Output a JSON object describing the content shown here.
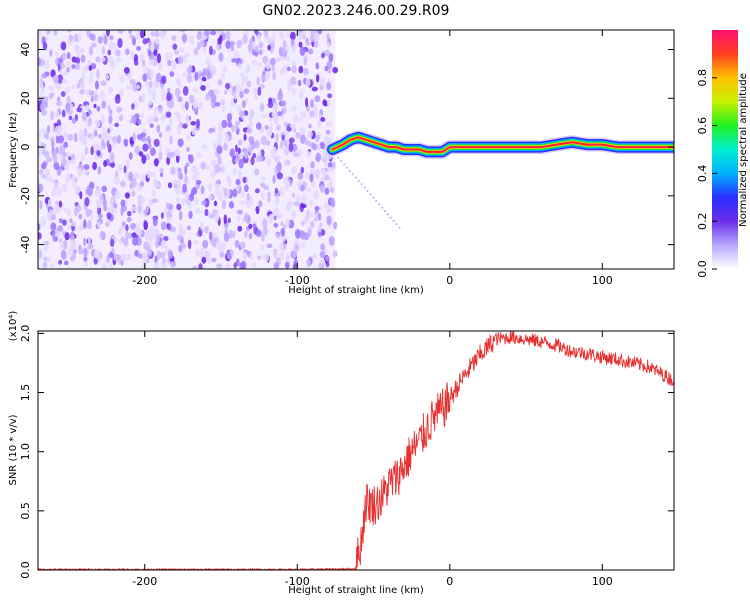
{
  "title": "GN02.2023.246.00.29.R09",
  "chart_data": [
    {
      "type": "heatmap",
      "xlabel": "Height of straight line (km)",
      "ylabel": "Frequency (Hz)",
      "xlim": [
        -270,
        147
      ],
      "ylim": [
        -50,
        48
      ],
      "x_ticks": [
        -200,
        -100,
        0,
        100
      ],
      "x_tick_labels": [
        "-200",
        "-100",
        "0",
        "100"
      ],
      "y_ticks": [
        -40,
        -20,
        0,
        20,
        40
      ],
      "y_tick_labels": [
        "-40",
        "-20",
        "0",
        "20",
        "40"
      ],
      "noise_region_x": [
        -270,
        -75
      ],
      "ridge": {
        "x": [
          -77,
          -70,
          -65,
          -60,
          -55,
          -50,
          -45,
          -40,
          -35,
          -30,
          -25,
          -20,
          -15,
          -10,
          -5,
          0,
          20,
          40,
          60,
          70,
          80,
          90,
          100,
          110,
          130,
          147
        ],
        "y": [
          -1,
          1,
          3,
          4,
          3,
          2,
          1,
          0,
          0,
          -1,
          -1,
          -1,
          -2,
          -2,
          -2,
          0,
          0,
          0,
          0,
          1,
          2,
          1,
          1,
          0,
          0,
          0
        ]
      },
      "faint_branch": {
        "x": [
          -75,
          -33
        ],
        "y": [
          -3,
          -33
        ]
      },
      "colorbar": {
        "label": "Normalized spectral amplitude",
        "range": [
          0,
          1
        ],
        "ticks": [
          0,
          0.2,
          0.4,
          0.6,
          0.8
        ],
        "tick_labels": [
          "0.0",
          "0.2",
          "0.4",
          "0.6",
          "0.8"
        ],
        "colors": [
          "#ffffff",
          "#b8a8ff",
          "#6a2ee8",
          "#2a30ff",
          "#00b0ff",
          "#00f0d0",
          "#20f020",
          "#c8f000",
          "#ffc000",
          "#ff4020",
          "#ff1070"
        ]
      }
    },
    {
      "type": "line",
      "xlabel": "Height of straight line (km)",
      "ylabel": "SNR (10 * v/v)",
      "y_multiplier": "(x10⁴)",
      "xlim": [
        -270,
        147
      ],
      "ylim": [
        0,
        2.02
      ],
      "x_ticks": [
        -200,
        -100,
        0,
        100
      ],
      "x_tick_labels": [
        "-200",
        "-100",
        "0",
        "100"
      ],
      "y_ticks": [
        0,
        0.5,
        1.0,
        1.5,
        2.0
      ],
      "y_tick_labels": [
        "0.0",
        "0.5",
        "1.0",
        "1.5",
        "2.0"
      ],
      "color": "#e83030",
      "series": [
        {
          "x": [
            -270,
            -100,
            -62,
            -58,
            -55,
            -50,
            -45,
            -40,
            -35,
            -30,
            -25,
            -20,
            -15,
            -10,
            -5,
            0,
            10,
            20,
            30,
            40,
            50,
            60,
            70,
            80,
            90,
            100,
            110,
            120,
            130,
            140,
            147
          ],
          "y": [
            0.005,
            0.005,
            0.01,
            0.25,
            0.58,
            0.55,
            0.6,
            0.72,
            0.78,
            0.88,
            1.0,
            1.08,
            1.2,
            1.3,
            1.35,
            1.45,
            1.65,
            1.82,
            1.95,
            1.97,
            1.95,
            1.93,
            1.9,
            1.85,
            1.83,
            1.8,
            1.78,
            1.75,
            1.72,
            1.65,
            1.6
          ]
        }
      ]
    }
  ]
}
